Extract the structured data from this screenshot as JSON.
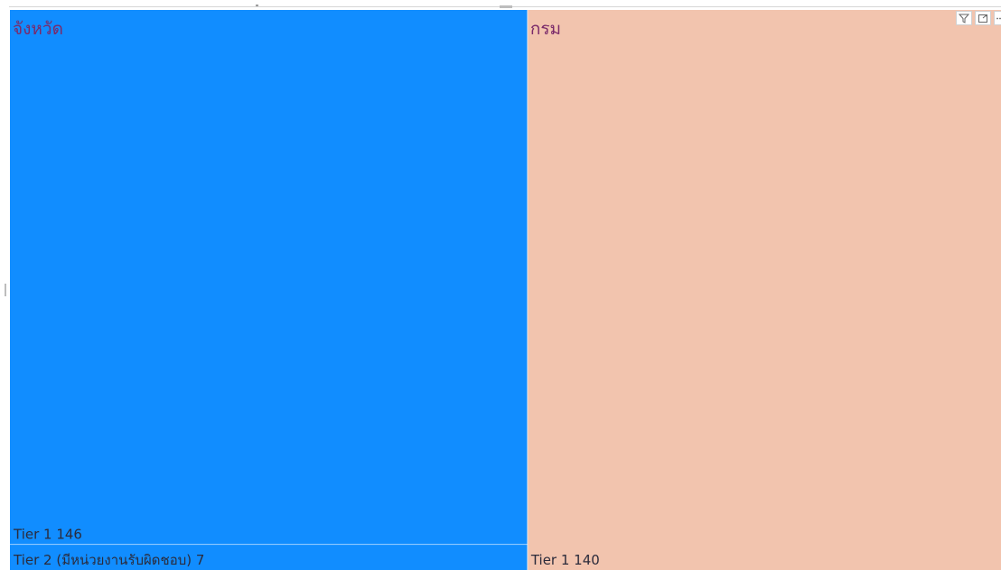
{
  "chart_data": {
    "type": "treemap",
    "groups": [
      {
        "label": "จังหวัด",
        "color": "#118dff",
        "items": [
          {
            "label": "Tier 1",
            "value": 146,
            "color": "#118dff"
          },
          {
            "label": "Tier 2 (มีหน่วยงานรับผิดชอบ)",
            "value": 7,
            "color": "#118dff"
          }
        ]
      },
      {
        "label": "กรม",
        "color": "#f2c4ae",
        "items": [
          {
            "label": "Tier 1",
            "value": 140,
            "color": "#f2c4ae"
          }
        ]
      }
    ],
    "label_color": "#7a2a6a",
    "data_label_color": "#2b2b3b"
  },
  "toolbar": {
    "icons": [
      "filter-icon",
      "focus-mode-icon",
      "more-options-icon"
    ]
  }
}
